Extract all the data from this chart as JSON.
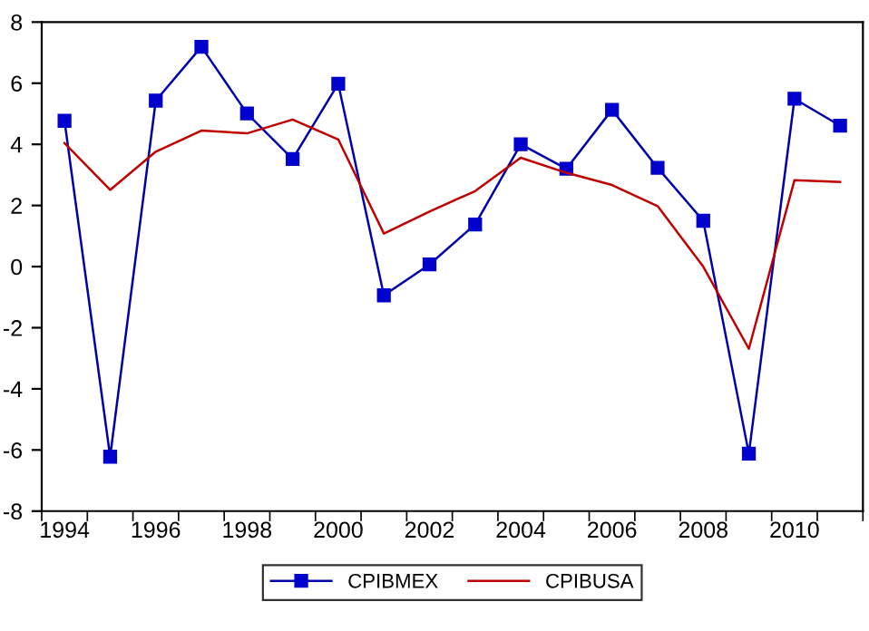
{
  "chart_data": {
    "type": "line",
    "categories": [
      "1994",
      null,
      "1996",
      null,
      "1998",
      null,
      "2000",
      null,
      "2002",
      null,
      "2004",
      null,
      "2006",
      null,
      "2008",
      null,
      "2010",
      null
    ],
    "series": [
      {
        "name": "CPIBMEX",
        "color": "#0000aa",
        "marker": "square",
        "values": [
          4.77,
          -6.22,
          5.43,
          7.19,
          5.01,
          3.52,
          5.98,
          -0.94,
          0.07,
          1.38,
          4.0,
          3.2,
          5.13,
          3.23,
          1.5,
          -6.12,
          5.49,
          4.61
        ]
      },
      {
        "name": "CPIBUSA",
        "color": "#c00000",
        "marker": "none",
        "values": [
          4.04,
          2.51,
          3.76,
          4.45,
          4.36,
          4.81,
          4.16,
          1.08,
          1.8,
          2.47,
          3.56,
          3.07,
          2.67,
          1.98,
          0.0,
          -2.69,
          2.83,
          2.77
        ]
      }
    ],
    "ylim": [
      -8,
      8
    ],
    "yticks": [
      -8,
      -6,
      -4,
      -2,
      0,
      2,
      4,
      6,
      8
    ],
    "grid": false,
    "legend": "bottom"
  }
}
